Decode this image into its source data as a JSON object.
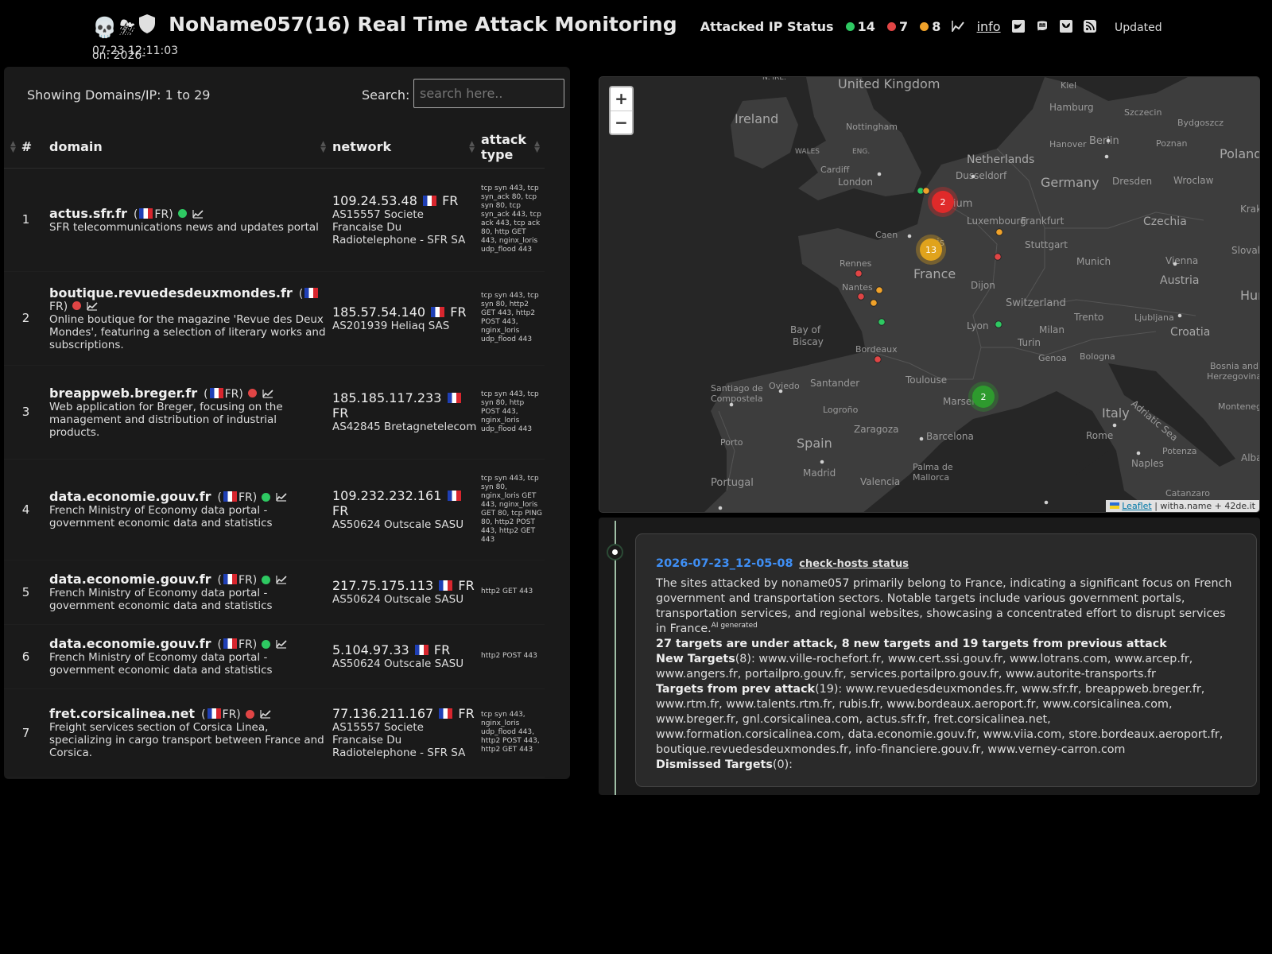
{
  "header": {
    "title": "NoName057(16) Real Time Attack Monitoring",
    "title_icons": [
      "skull-icon",
      "storm-cloud-icon",
      "shield-icon"
    ],
    "status_label": "Attacked IP Status",
    "status_online": "14",
    "status_offline": "7",
    "status_partial": "8",
    "info_link": "info",
    "updated_line1": "Updated on: 2026-",
    "updated_line2": "07-23 12:11:03",
    "colors": {
      "online": "#2ec962",
      "offline": "#e04545",
      "partial": "#f0a22a"
    }
  },
  "table": {
    "showing": "Showing Domains/IP: 1 to 29",
    "search_label": "Search:",
    "search_placeholder": "search here..",
    "columns": [
      "#",
      "domain",
      "network",
      "attack type"
    ],
    "rows": [
      {
        "n": "1",
        "domain": "actus.sfr.fr",
        "cc": "FR)",
        "status": "green",
        "desc": "SFR telecommunications news and updates portal",
        "ip": "109.24.53.48",
        "ipcc": "FR",
        "asn": "AS15557 Societe Francaise Du Radiotelephone - SFR SA",
        "attack": "tcp syn 443, tcp syn_ack 80, tcp syn 80, tcp syn_ack 443, tcp ack 443, tcp ack 80, http GET 443, nginx_loris udp_flood 443"
      },
      {
        "n": "2",
        "domain": "boutique.revuedesdeuxmondes.fr",
        "cc": "FR)",
        "status": "red",
        "desc": "Online boutique for the magazine 'Revue des Deux Mondes', featuring a selection of literary works and subscriptions.",
        "ip": "185.57.54.140",
        "ipcc": "FR",
        "asn": "AS201939 Heliaq SAS",
        "attack": "tcp syn 443, tcp syn 80, http2 GET 443, http2 POST 443, nginx_loris udp_flood 443"
      },
      {
        "n": "3",
        "domain": "breappweb.breger.fr",
        "cc": "FR)",
        "status": "red",
        "desc": "Web application for Breger, focusing on the management and distribution of industrial products.",
        "ip": "185.185.117.233",
        "ipcc": "FR",
        "asn": "AS42845 Bretagnetelecom",
        "attack": "tcp syn 443, tcp syn 80, http POST 443, nginx_loris udp_flood 443"
      },
      {
        "n": "4",
        "domain": "data.economie.gouv.fr",
        "cc": "FR)",
        "status": "green",
        "desc": "French Ministry of Economy data portal - government economic data and statistics",
        "ip": "109.232.232.161",
        "ipcc": "FR",
        "asn": "AS50624 Outscale SASU",
        "attack": "tcp syn 443, tcp syn 80, nginx_loris GET 443, nginx_loris GET 80, tcp PING 80, http2 POST 443, http2 GET 443"
      },
      {
        "n": "5",
        "domain": "data.economie.gouv.fr",
        "cc": "FR)",
        "status": "green",
        "desc": "French Ministry of Economy data portal - government economic data and statistics",
        "ip": "217.75.175.113",
        "ipcc": "FR",
        "asn": "AS50624 Outscale SASU",
        "attack": "http2 GET 443"
      },
      {
        "n": "6",
        "domain": "data.economie.gouv.fr",
        "cc": "FR)",
        "status": "green",
        "desc": "French Ministry of Economy data portal - government economic data and statistics",
        "ip": "5.104.97.33",
        "ipcc": "FR",
        "asn": "AS50624 Outscale SASU",
        "attack": "http2 POST 443"
      },
      {
        "n": "7",
        "domain": "fret.corsicalinea.net",
        "cc": "FR)",
        "status": "red",
        "desc": "Freight services section of Corsica Linea, specializing in cargo transport between France and Corsica.",
        "ip": "77.136.211.167",
        "ipcc": "FR",
        "asn": "AS15557 Societe Francaise Du Radiotelephone - SFR SA",
        "attack": "tcp syn 443, nginx_loris udp_flood 443, http2 POST 443, http2 GET 443"
      }
    ]
  },
  "map": {
    "zoom_in": "+",
    "zoom_out": "−",
    "attribution_leaflet": "Leaflet",
    "attribution_rest": "| witha.name + 42de.it",
    "labels": {
      "united_kingdom": "United Kingdom",
      "ireland": "Ireland",
      "wales": "WALES",
      "eng": "ENG.",
      "nire": "N. IRE.",
      "nottingham": "Nottingham",
      "cardiff": "Cardiff",
      "london": "London",
      "netherlands": "Netherlands",
      "hamburg": "Hamburg",
      "kiel": "Kiel",
      "szczecin": "Szczecin",
      "bydgoszcz": "Bydgoszcz",
      "hanover": "Hanover",
      "berlin": "Berlin",
      "poznan": "Poznan",
      "poland": "Poland",
      "germany": "Germany",
      "dusseldorf": "Dusseldorf",
      "dresden": "Dresden",
      "wroclaw": "Wroclaw",
      "krakow": "Krakó",
      "belgium": "elgium",
      "luxembourg": "Luxembourg",
      "frankfurt": "Frankfurt",
      "czechia": "Czechia",
      "caen": "Caen",
      "paris": "aris",
      "stuttgart": "Stuttgart",
      "slovakia": "Slovakia",
      "rennes": "Rennes",
      "france": "France",
      "munich": "Munich",
      "vienna": "Vienna",
      "nantes": "Nantes",
      "dijon": "Dijon",
      "austria": "Austria",
      "hungary": "Hungar",
      "switzerland": "Switzerland",
      "lyon": "Lyon",
      "trento": "Trento",
      "ljubljana": "Ljubljana",
      "bay_of": "Bay of",
      "biscay": "Biscay",
      "milan": "Milan",
      "croatia": "Croatia",
      "bordeaux": "Bordeaux",
      "turin": "Turin",
      "genoa": "Genoa",
      "bologna": "Bologna",
      "bosnia": "Bosnia and",
      "herzegovina": "Herzegovina",
      "santiago": "Santiago de",
      "compostela": "Compostela",
      "oviedo": "Oviedo",
      "santander": "Santander",
      "toulouse": "Toulouse",
      "marseille": "Marseil",
      "adriatic": "Adriatic Sea",
      "montenegro": "Montenegro",
      "logrono": "Logroño",
      "italy": "Italy",
      "zaragoza": "Zaragoza",
      "porto": "Porto",
      "spain": "Spain",
      "barcelona": "Barcelona",
      "rome": "Rome",
      "potenza": "Potenza",
      "naples": "Naples",
      "madrid": "Madrid",
      "palma": "Palma de",
      "mallorca": "Mallorca",
      "valencia": "Valencia",
      "portugal": "Portugal",
      "albania": "Albar",
      "catanzaro": "Catanzaro"
    },
    "clusters": [
      {
        "label": "2",
        "color": "#e02a2a"
      },
      {
        "label": "13",
        "color": "#e0a31c"
      },
      {
        "label": "2",
        "color": "#2e9a2e"
      }
    ]
  },
  "timeline": {
    "date": "2026-07-23_12-05-08",
    "check_link": "check-hosts status",
    "summary": "The sites attacked by noname057 primarily belong to France, indicating a significant focus on French government and transportation sectors. Notable targets include various government portals, transportation services, and regional websites, showcasing a concentrated effort to disrupt services in France.",
    "ai_tag": "AI generated",
    "headline": "27 targets are under attack, 8 new targets and 19 targets from previous attack",
    "new_label": "New Targets",
    "new_count": "(8):",
    "new_list": "www.ville-rochefort.fr, www.cert.ssi.gouv.fr, www.lotrans.com, www.arcep.fr, www.angers.fr, portailpro.gouv.fr, services.portailpro.gouv.fr, www.autorite-transports.fr",
    "prev_label": "Targets from prev attack",
    "prev_count": "(19):",
    "prev_list": "www.revuedesdeuxmondes.fr, www.sfr.fr, breappweb.breger.fr, www.rtm.fr, www.talents.rtm.fr, rubis.fr, www.bordeaux.aeroport.fr, www.corsicalinea.com, www.breger.fr, gnl.corsicalinea.com, actus.sfr.fr, fret.corsicalinea.net, www.formation.corsicalinea.com, data.economie.gouv.fr, www.viia.com, store.bordeaux.aeroport.fr, boutique.revuedesdeuxmondes.fr, info-financiere.gouv.fr, www.verney-carron.com",
    "dismissed_label": "Dismissed Targets",
    "dismissed_count": "(0):"
  }
}
